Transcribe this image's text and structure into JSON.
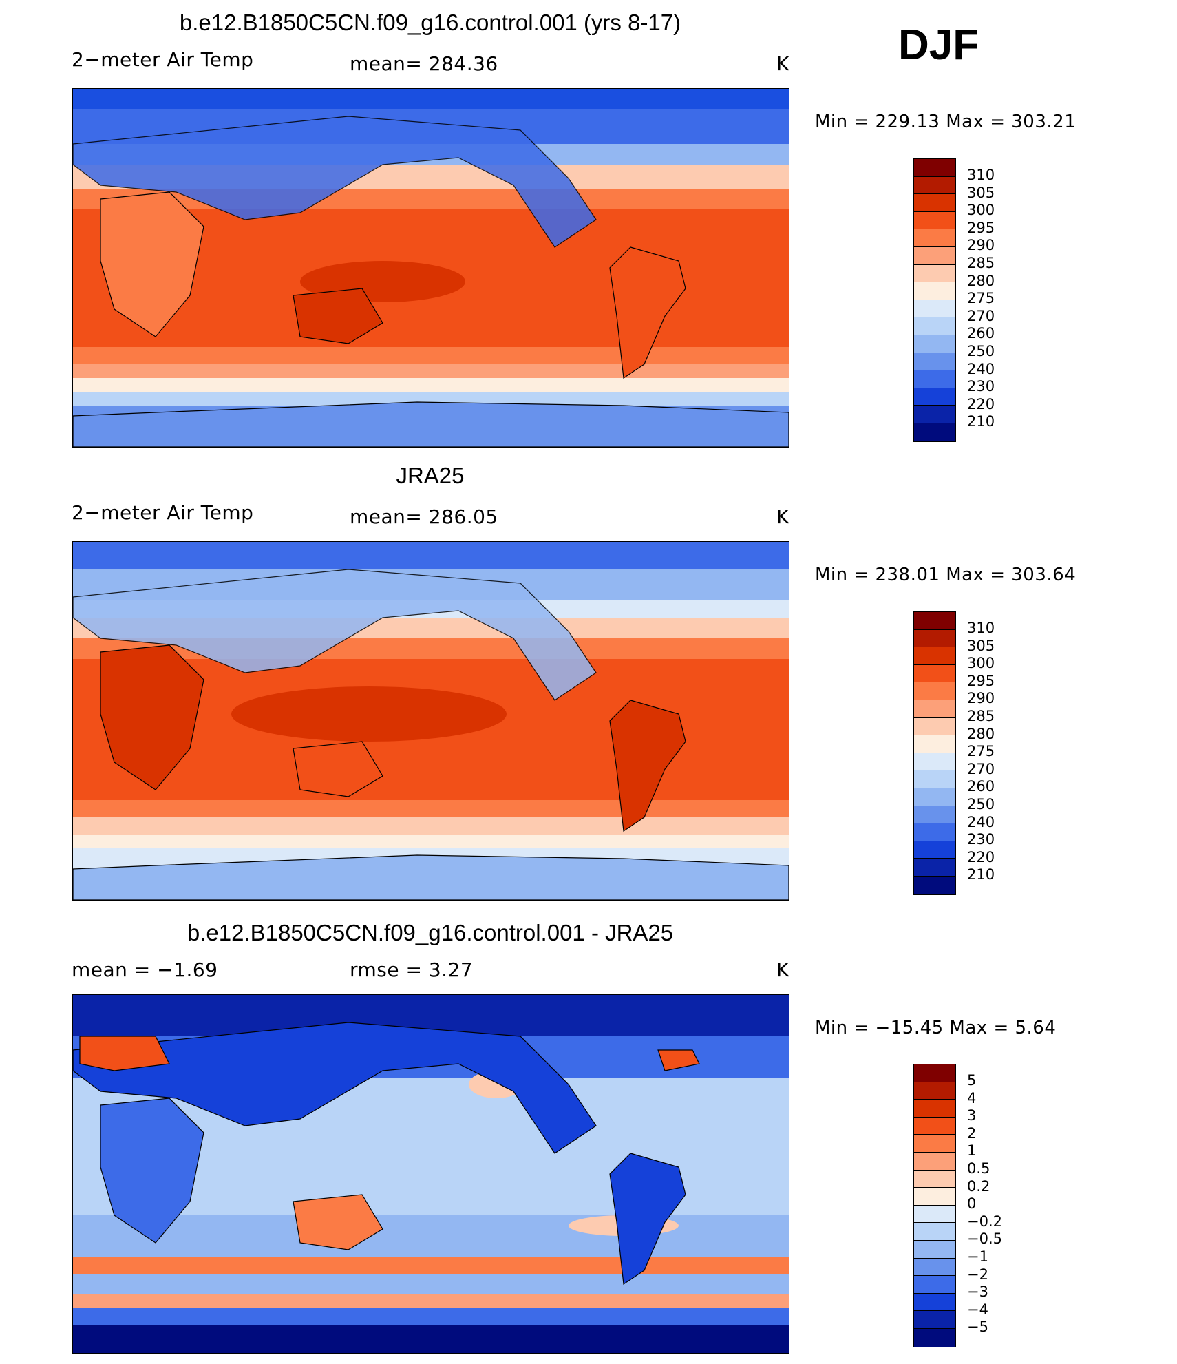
{
  "season": "DJF",
  "panels": [
    {
      "title": "b.e12.B1850C5CN.f09_g16.control.001 (yrs 8-17)",
      "left_label": "2−meter Air Temp",
      "center_label": "mean=  284.36",
      "units": "K",
      "minmax": "Min  =  229.13  Max  =  303.21",
      "colorbar": [
        "310",
        "305",
        "300",
        "295",
        "290",
        "285",
        "280",
        "275",
        "270",
        "260",
        "250",
        "240",
        "230",
        "220",
        "210"
      ]
    },
    {
      "title": "JRA25",
      "left_label": "2−meter Air Temp",
      "center_label": "mean=  286.05",
      "units": "K",
      "minmax": "Min  =  238.01  Max  =  303.64",
      "colorbar": [
        "310",
        "305",
        "300",
        "295",
        "290",
        "285",
        "280",
        "275",
        "270",
        "260",
        "250",
        "240",
        "230",
        "220",
        "210"
      ]
    },
    {
      "title": "b.e12.B1850C5CN.f09_g16.control.001 - JRA25",
      "left_label": "mean  =    −1.69",
      "center_label": "rmse  =     3.27",
      "units": "K",
      "minmax": "Min  =  −15.45  Max  =     5.64",
      "colorbar": [
        "5",
        "4",
        "3",
        "2",
        "1",
        "0.5",
        "0.2",
        "0",
        "−0.2",
        "−0.5",
        "−1",
        "−2",
        "−3",
        "−4",
        "−5"
      ]
    }
  ],
  "colors": {
    "temp_scale": [
      "#7f0000",
      "#b31b00",
      "#d93300",
      "#f25018",
      "#fb7b45",
      "#fca079",
      "#fdcbb0",
      "#fdeedf",
      "#dbe9f9",
      "#b9d4f7",
      "#93b7f2",
      "#6892ec",
      "#3d6be8",
      "#1541d9",
      "#0a23a8",
      "#000b7d"
    ],
    "diff_scale": [
      "#7f0000",
      "#b31b00",
      "#d93300",
      "#f25018",
      "#fb7b45",
      "#fca079",
      "#fdcbb0",
      "#fdeedf",
      "#dbe9f9",
      "#b9d4f7",
      "#93b7f2",
      "#6892ec",
      "#3d6be8",
      "#1541d9",
      "#0a23a8",
      "#000b7d"
    ]
  }
}
